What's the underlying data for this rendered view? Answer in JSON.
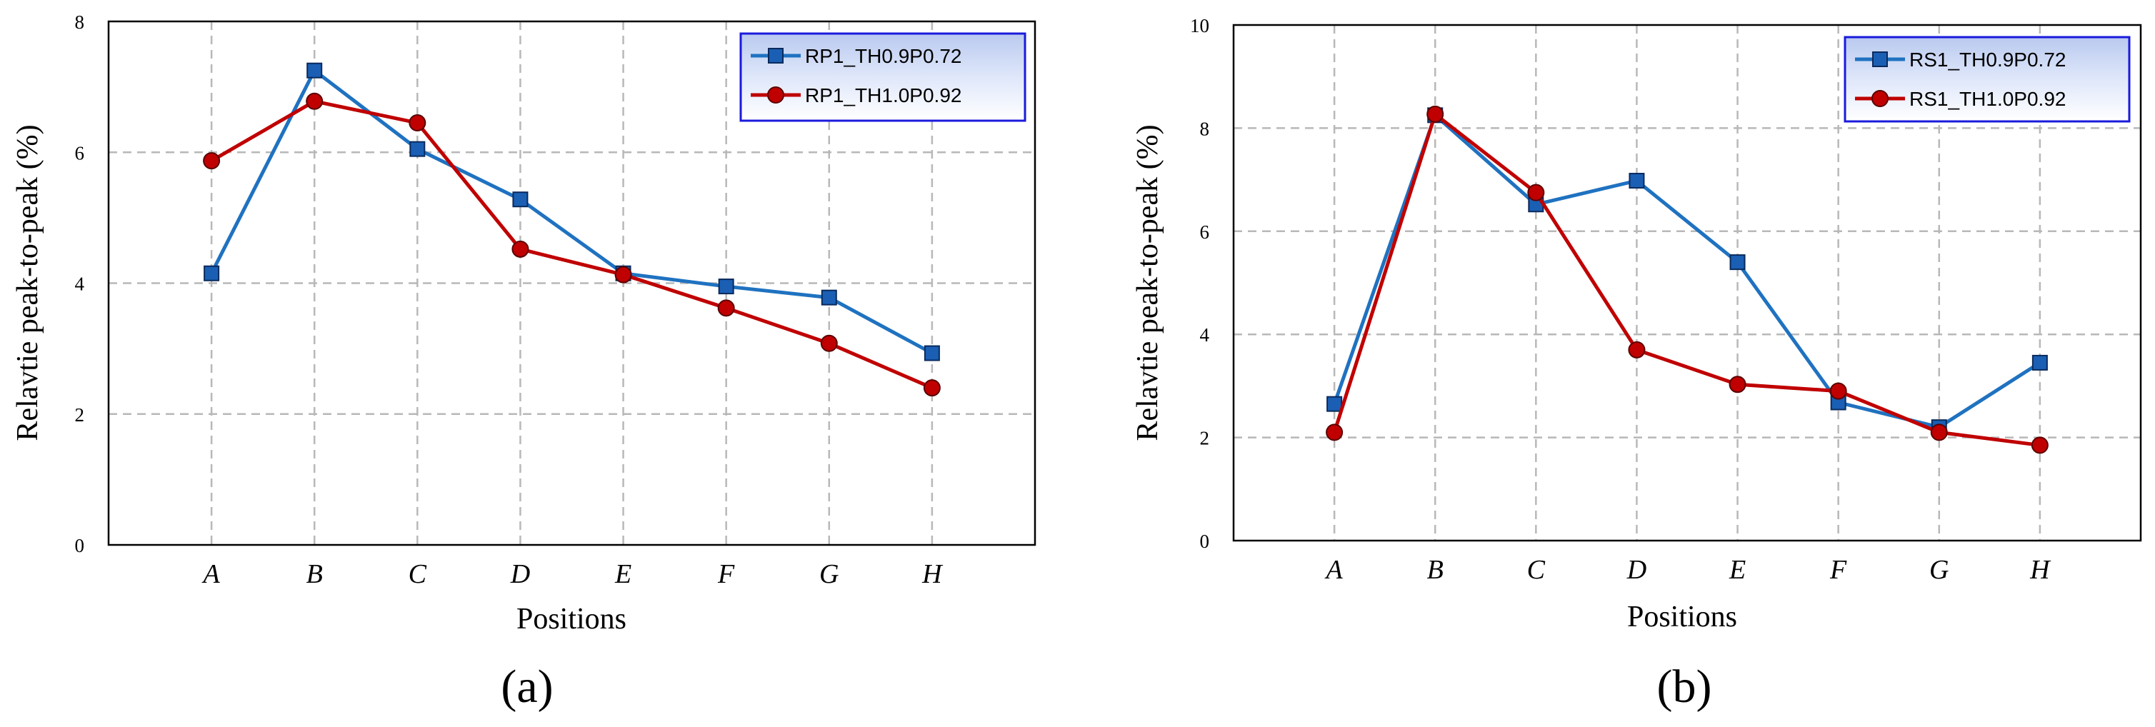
{
  "chart_data": [
    {
      "type": "line",
      "panel_label": "(a)",
      "categories": [
        "A",
        "B",
        "C",
        "D",
        "E",
        "F",
        "G",
        "H"
      ],
      "xlabel": "Positions",
      "ylabel": "Relavtie peak-to-peak (%)",
      "ylim": [
        0,
        8
      ],
      "yticks": [
        0,
        2,
        4,
        6,
        8
      ],
      "grid": true,
      "legend_position": "top-right",
      "series": [
        {
          "name": "RP1_TH0.9P0.72",
          "color": "#1f72c0",
          "marker": "square",
          "marker_fill": "#1a5fb4",
          "values": [
            4.15,
            7.25,
            6.05,
            5.28,
            4.15,
            3.95,
            3.78,
            2.93
          ]
        },
        {
          "name": "RP1_TH1.0P0.92",
          "color": "#c00000",
          "marker": "circle",
          "marker_fill": "#c00000",
          "values": [
            5.87,
            6.78,
            6.45,
            4.52,
            4.13,
            3.62,
            3.08,
            2.4
          ]
        }
      ]
    },
    {
      "type": "line",
      "panel_label": "(b)",
      "categories": [
        "A",
        "B",
        "C",
        "D",
        "E",
        "F",
        "G",
        "H"
      ],
      "xlabel": "Positions",
      "ylabel": "Relavtie peak-to-peak (%)",
      "ylim": [
        0,
        10
      ],
      "yticks": [
        0,
        2,
        4,
        6,
        8,
        10
      ],
      "grid": true,
      "legend_position": "top-right",
      "series": [
        {
          "name": "RS1_TH0.9P0.72",
          "color": "#1f72c0",
          "marker": "square",
          "marker_fill": "#1a5fb4",
          "values": [
            2.65,
            8.25,
            6.52,
            6.98,
            5.4,
            2.68,
            2.2,
            3.45
          ]
        },
        {
          "name": "RS1_TH1.0P0.92",
          "color": "#c00000",
          "marker": "circle",
          "marker_fill": "#c00000",
          "values": [
            2.1,
            8.27,
            6.75,
            3.7,
            3.03,
            2.9,
            2.1,
            1.85
          ]
        }
      ]
    }
  ]
}
